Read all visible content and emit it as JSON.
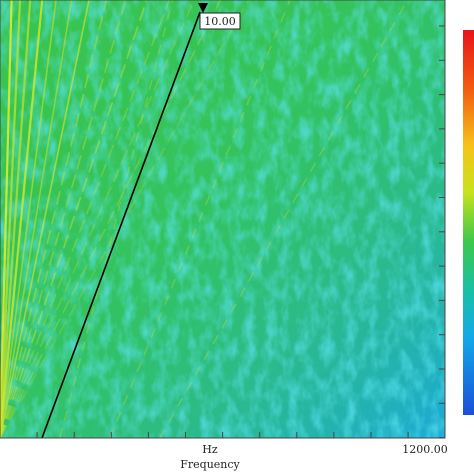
{
  "plot": {
    "cursor_label": "10.00",
    "x_unit": "Hz",
    "x_max_label": "1200.00",
    "x_axis_title": "Frequency"
  }
}
